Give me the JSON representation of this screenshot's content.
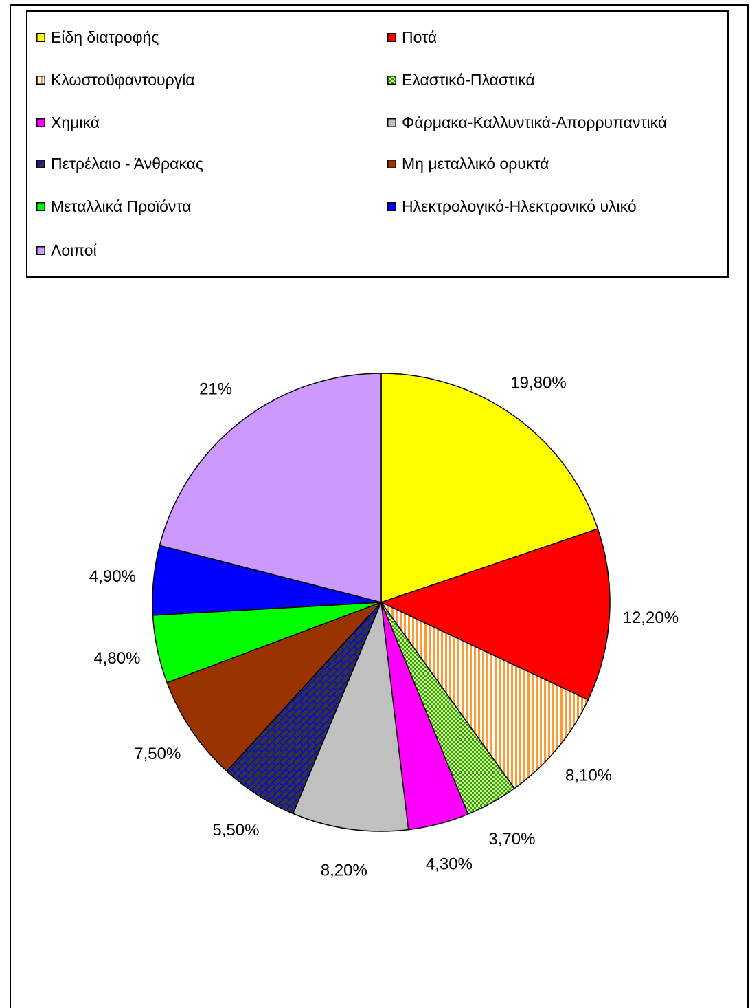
{
  "chart_data": {
    "type": "pie",
    "title": "",
    "slices": [
      {
        "label": "Είδη διατροφής",
        "value": 19.8,
        "value_label": "19,80%",
        "color": "#FFFF00",
        "pattern": "solid"
      },
      {
        "label": "Ποτά",
        "value": 12.2,
        "value_label": "12,20%",
        "color": "#FF0000",
        "pattern": "solid"
      },
      {
        "label": "Κλωστοϋφαντουργία",
        "value": 8.1,
        "value_label": "8,10%",
        "color": "#FF9933",
        "pattern": "vertical-stripes"
      },
      {
        "label": "Ελαστικό-Πλαστικά",
        "value": 3.7,
        "value_label": "3,70%",
        "color": "#339933",
        "pattern": "checker"
      },
      {
        "label": "Χημικά",
        "value": 4.3,
        "value_label": "4,30%",
        "color": "#FF00FF",
        "pattern": "solid"
      },
      {
        "label": "Φάρμακα-Καλλυντικά-Απορρυπαντικά",
        "value": 8.2,
        "value_label": "8,20%",
        "color": "#C0C0C0",
        "pattern": "solid"
      },
      {
        "label": "Πετρέλαιο - Άνθρακας",
        "value": 5.5,
        "value_label": "5,50%",
        "color": "#333333",
        "pattern": "bricks"
      },
      {
        "label": "Μη μεταλλικό ορυκτά",
        "value": 7.5,
        "value_label": "7,50%",
        "color": "#993300",
        "pattern": "solid"
      },
      {
        "label": "Μεταλλικά Προϊόντα",
        "value": 4.8,
        "value_label": "4,80%",
        "color": "#00FF00",
        "pattern": "solid"
      },
      {
        "label": "Ηλεκτρολογικό-Ηλεκτρονικό υλικό",
        "value": 4.9,
        "value_label": "4,90%",
        "color": "#0000FF",
        "pattern": "solid"
      },
      {
        "label": "Λοιποί",
        "value": 21,
        "value_label": "21%",
        "color": "#CC99FF",
        "pattern": "solid"
      }
    ],
    "legend_position": "top"
  }
}
